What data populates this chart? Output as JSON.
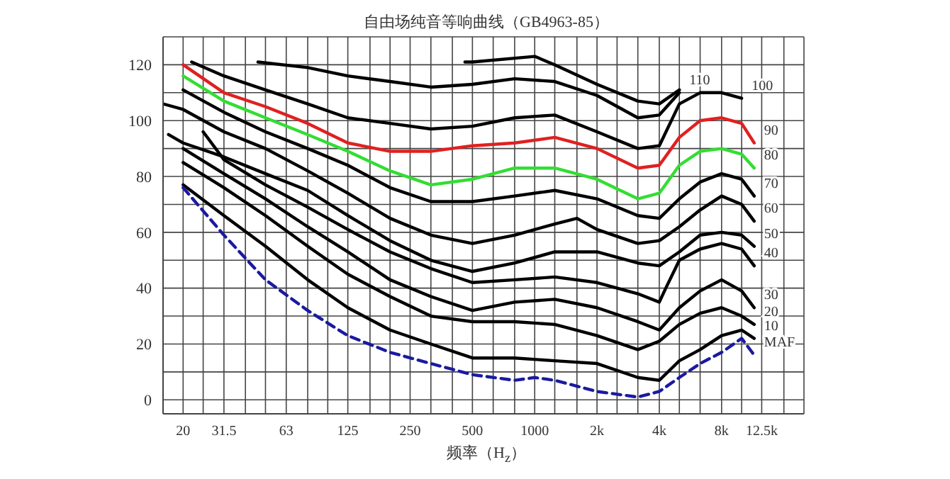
{
  "chart_data": {
    "type": "line",
    "title": "自由场纯音等响曲线（GB4963-85）",
    "xlabel": "频率（H$_{z}$）",
    "log": "x",
    "grid": true,
    "marker": "none",
    "line_style": "solid",
    "xlim": [
      16,
      20000
    ],
    "xticks": [
      {
        "value": 16,
        "label": null
      },
      20,
      {
        "value": 25,
        "label": null
      },
      31.5,
      {
        "value": 40,
        "label": null
      },
      {
        "value": 50,
        "label": null
      },
      63,
      {
        "value": 80,
        "label": null
      },
      {
        "value": 100,
        "label": null
      },
      125,
      {
        "value": 160,
        "label": null
      },
      {
        "value": 200,
        "label": null
      },
      250,
      {
        "value": 315,
        "label": null
      },
      {
        "value": 400,
        "label": null
      },
      500,
      {
        "value": 630,
        "label": null
      },
      {
        "value": 800,
        "label": null
      },
      1000,
      {
        "value": 1250,
        "label": null
      },
      {
        "value": 1600,
        "label": null
      },
      {
        "value": 2000,
        "label": "2k"
      },
      {
        "value": 2500,
        "label": null
      },
      {
        "value": 3150,
        "label": null
      },
      {
        "value": 4000,
        "label": "4k"
      },
      {
        "value": 5000,
        "label": null
      },
      {
        "value": 6300,
        "label": null
      },
      {
        "value": 8000,
        "label": "8k"
      },
      {
        "value": 10000,
        "label": null
      },
      {
        "value": 12500,
        "label": "12.5k"
      },
      {
        "value": 16000,
        "label": null
      }
    ],
    "ylim": [
      -5,
      130
    ],
    "yticks": [
      0,
      {
        "value": 10,
        "label": null
      },
      20,
      {
        "value": 30,
        "label": null
      },
      40,
      {
        "value": 50,
        "label": null
      },
      60,
      {
        "value": 70,
        "label": null
      },
      80,
      {
        "value": 90,
        "label": null
      },
      100,
      {
        "value": 110,
        "label": null
      },
      120
    ],
    "series": [
      {
        "color": "#000000",
        "x": [
          460,
          500,
          1000,
          1250,
          2000,
          3150,
          4000,
          5000
        ],
        "values": [
          121,
          121,
          123,
          120,
          113,
          107,
          106,
          111
        ]
      },
      {
        "name": "110",
        "color": "#000000",
        "x": [
          46,
          80,
          125,
          200,
          315,
          500,
          800,
          1250,
          2000,
          3150,
          4000,
          5000
        ],
        "values": [
          121,
          119,
          116,
          114,
          112,
          113,
          115,
          114,
          109,
          101,
          102,
          110
        ]
      },
      {
        "name": "100",
        "color": "#000000",
        "x": [
          22,
          31.5,
          50,
          80,
          125,
          200,
          315,
          500,
          800,
          1250,
          2000,
          3150,
          4000,
          5000,
          6300,
          8000,
          10000
        ],
        "values": [
          121,
          116,
          111,
          106,
          101,
          99,
          97,
          98,
          101,
          102,
          96,
          90,
          91,
          106,
          110,
          110,
          108
        ]
      },
      {
        "name": "90",
        "color": "#e02020",
        "x": [
          20,
          31.5,
          50,
          80,
          125,
          200,
          315,
          500,
          800,
          1250,
          2000,
          3150,
          4000,
          5000,
          6300,
          8000,
          10000,
          11500
        ],
        "values": [
          120,
          110,
          105,
          99,
          92,
          89,
          89,
          91,
          92,
          94,
          90,
          83,
          84,
          94,
          100,
          101,
          99,
          92
        ]
      },
      {
        "name": "80",
        "color": "#33dd33",
        "x": [
          20,
          31.5,
          50,
          80,
          125,
          200,
          315,
          500,
          800,
          1250,
          2000,
          3150,
          4000,
          5000,
          6300,
          8000,
          10000,
          11500
        ],
        "values": [
          116,
          107,
          101,
          95,
          89,
          82,
          77,
          79,
          83,
          83,
          79,
          72,
          74,
          84,
          89,
          90,
          88,
          83
        ]
      },
      {
        "name": "70",
        "color": "#000000",
        "x": [
          20,
          31.5,
          50,
          80,
          125,
          200,
          315,
          500,
          800,
          1250,
          2000,
          3150,
          4000,
          5000,
          6300,
          8000,
          10000,
          11500
        ],
        "values": [
          111,
          103,
          96,
          90,
          84,
          76,
          71,
          71,
          73,
          75,
          72,
          66,
          65,
          72,
          78,
          81,
          79,
          73
        ]
      },
      {
        "name": "60",
        "color": "#000000",
        "x": [
          16,
          20,
          31.5,
          50,
          80,
          125,
          200,
          315,
          500,
          800,
          1250,
          1600,
          2000,
          3150,
          4000,
          5000,
          6300,
          8000,
          10000,
          11500
        ],
        "values": [
          106,
          104,
          96,
          90,
          82,
          74,
          65,
          59,
          56,
          59,
          63,
          65,
          61,
          56,
          57,
          62,
          68,
          73,
          70,
          64
        ]
      },
      {
        "name": "50",
        "color": "#000000",
        "x": [
          17,
          20,
          31.5,
          50,
          80,
          125,
          200,
          315,
          500,
          800,
          1250,
          2000,
          3150,
          4000,
          5000,
          6300,
          8000,
          10000,
          11500
        ],
        "values": [
          95,
          92,
          87,
          81,
          75,
          66,
          57,
          50,
          46,
          49,
          53,
          53,
          49,
          48,
          53,
          59,
          60,
          59,
          55
        ]
      },
      {
        "name": "40",
        "color": "#000000",
        "x": [
          25,
          31.5,
          50,
          80,
          125,
          200,
          315,
          500,
          800,
          1250,
          2000,
          3150,
          4000,
          4300,
          5000,
          6300,
          8000,
          10000,
          11500
        ],
        "values": [
          96,
          86,
          77,
          69,
          61,
          53,
          47,
          42,
          43,
          44,
          42,
          38,
          35,
          40,
          50,
          54,
          56,
          54,
          48
        ]
      },
      {
        "name": "30",
        "color": "#000000",
        "x": [
          20,
          31.5,
          50,
          80,
          125,
          200,
          315,
          500,
          800,
          1250,
          2000,
          3150,
          4000,
          5000,
          6300,
          8000,
          10000,
          11500
        ],
        "values": [
          90,
          81,
          72,
          62,
          53,
          43,
          37,
          32,
          35,
          36,
          33,
          28,
          25,
          33,
          39,
          43,
          39,
          33
        ]
      },
      {
        "name": "20",
        "color": "#000000",
        "x": [
          20,
          31.5,
          50,
          80,
          125,
          200,
          315,
          500,
          800,
          1250,
          2000,
          3150,
          4000,
          5000,
          6300,
          8000,
          10000,
          11500
        ],
        "values": [
          85,
          76,
          66,
          55,
          45,
          37,
          30,
          28,
          28,
          27,
          23,
          18,
          21,
          27,
          31,
          33,
          30,
          27
        ]
      },
      {
        "name": "10",
        "color": "#000000",
        "x": [
          20,
          31.5,
          50,
          80,
          125,
          200,
          315,
          500,
          800,
          1250,
          2000,
          3150,
          4000,
          5000,
          6300,
          8000,
          10000,
          11500
        ],
        "values": [
          77,
          66,
          55,
          43,
          33,
          25,
          20,
          15,
          15,
          14,
          13,
          8,
          7,
          14,
          18,
          23,
          25,
          22
        ]
      },
      {
        "name": "MAF",
        "color": "#1a1aa0",
        "line_style": "dashed",
        "x": [
          20,
          31.5,
          50,
          80,
          125,
          200,
          315,
          500,
          800,
          1000,
          1250,
          2000,
          3150,
          4000,
          5000,
          6300,
          8000,
          10000,
          11500
        ],
        "values": [
          76,
          59,
          43,
          32,
          23,
          17,
          13,
          9,
          7,
          8,
          7,
          3,
          1,
          3,
          8,
          13,
          17,
          22,
          16
        ]
      }
    ]
  }
}
